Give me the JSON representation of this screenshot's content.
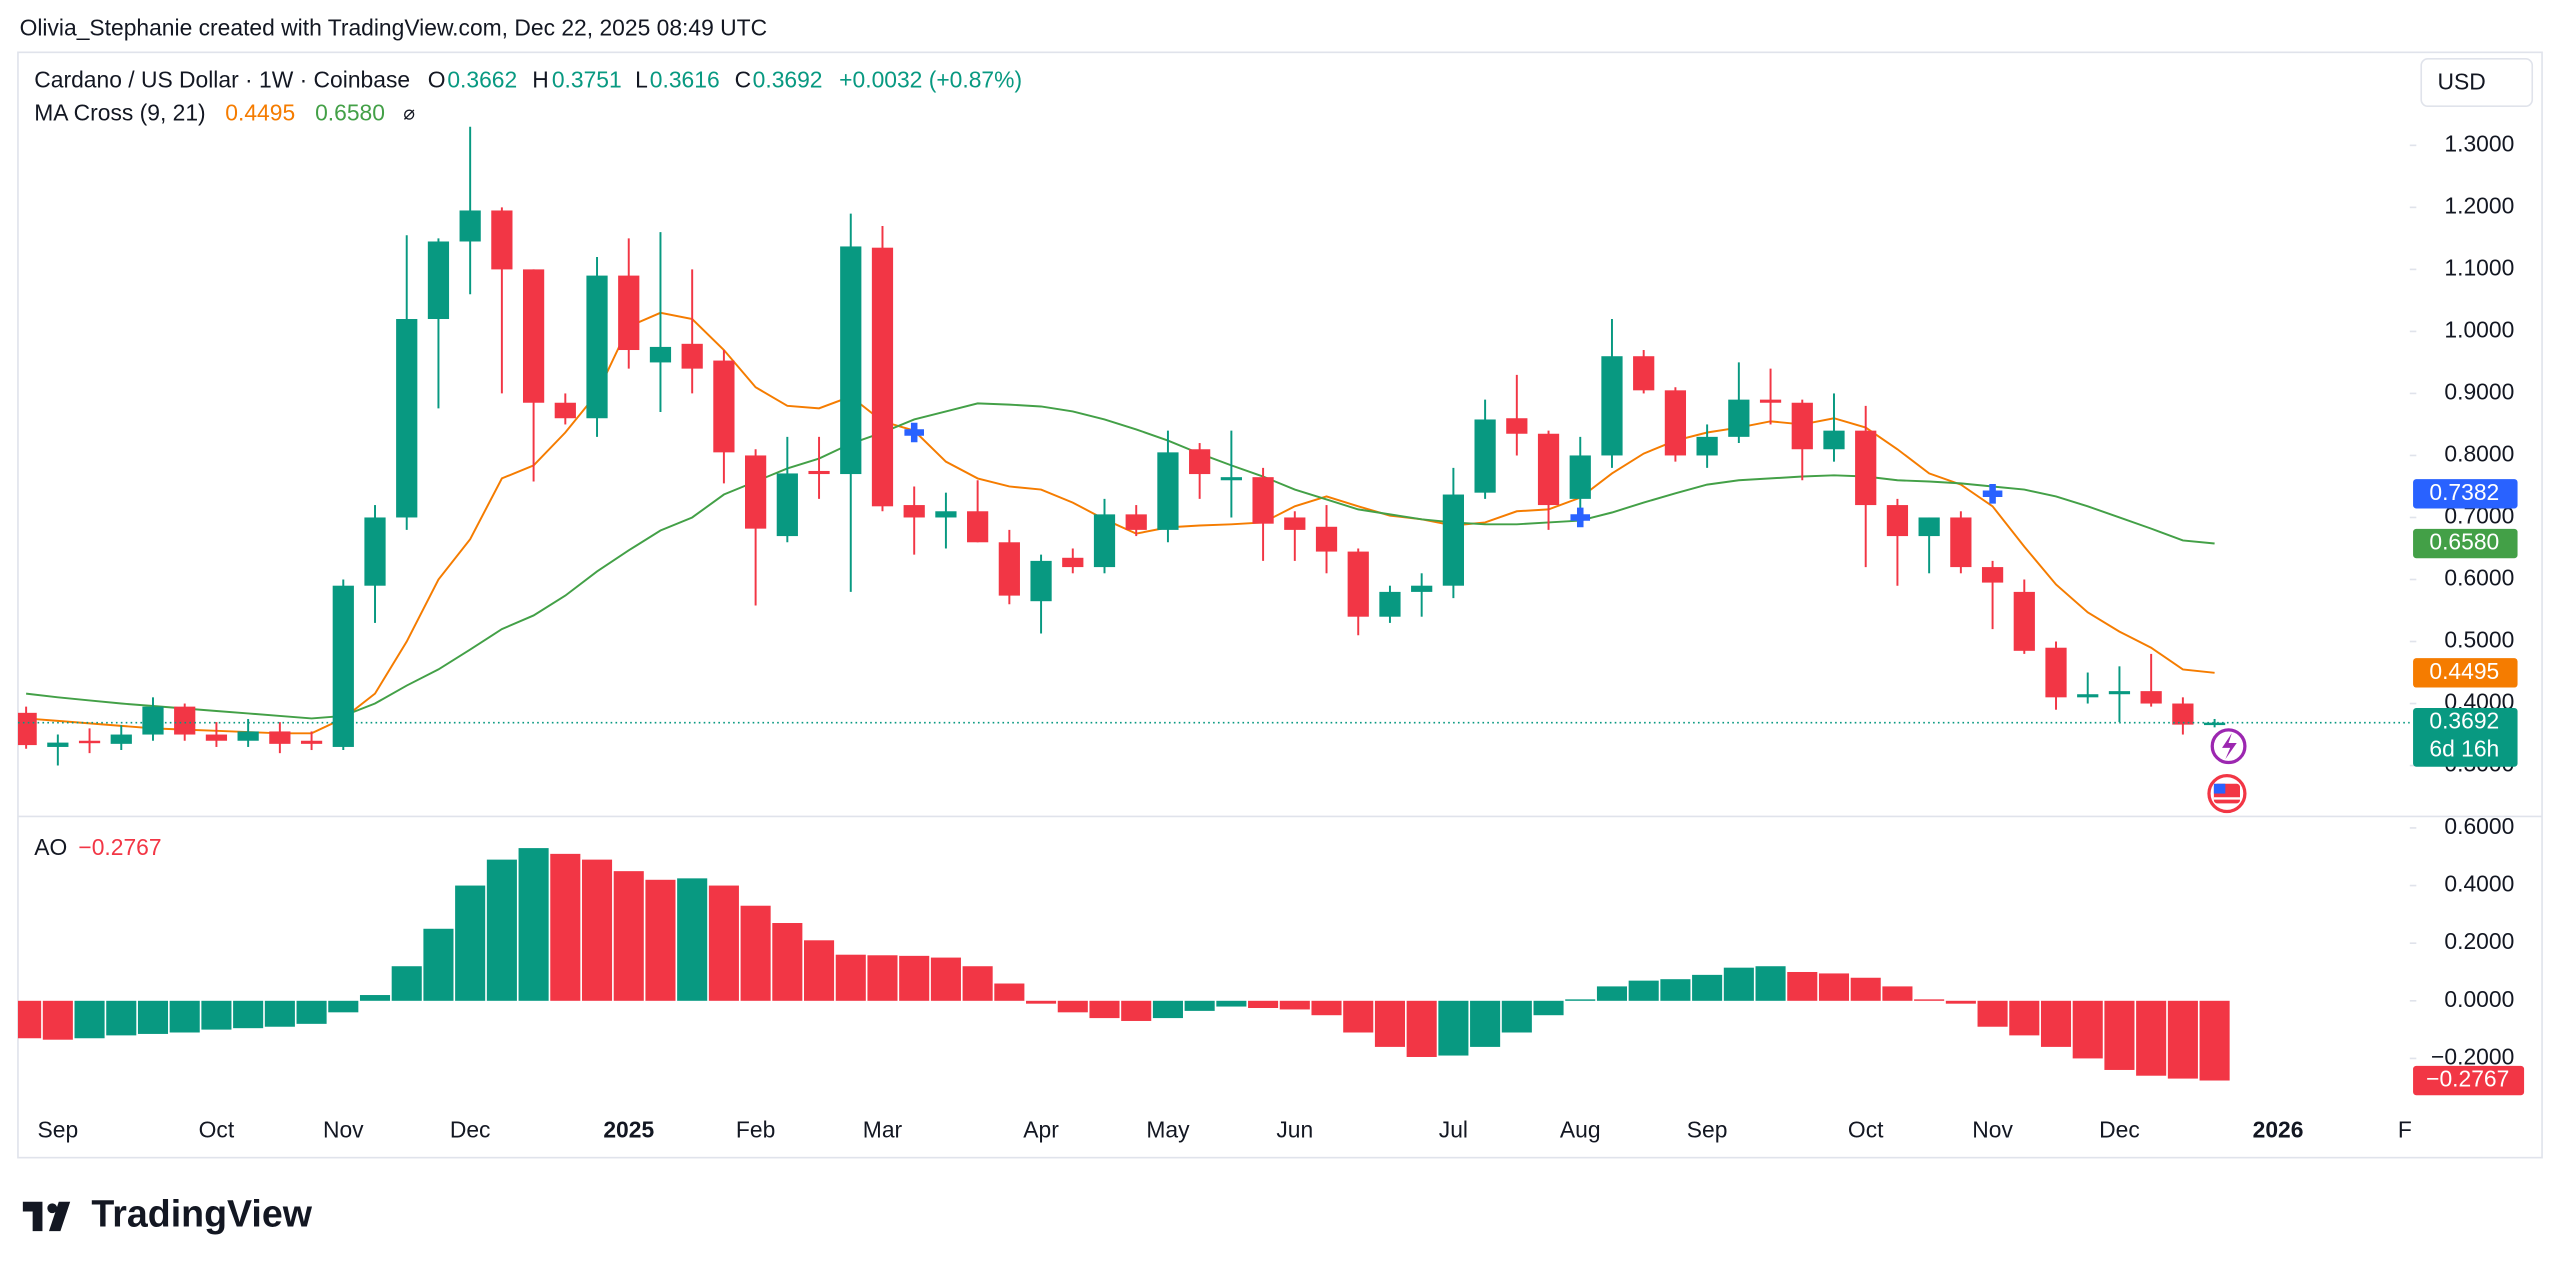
{
  "header": {
    "attribution": "Olivia_Stephanie created with TradingView.com, Dec 22, 2025 08:49 UTC",
    "logo": "TradingView"
  },
  "chart_data": [
    {
      "type": "candlestick",
      "title": "Cardano / US Dollar · 1W · Coinbase",
      "currency": "USD",
      "ohlc_keys": [
        "O",
        "H",
        "L",
        "C"
      ],
      "change": "+0.0032 (+0.87%)",
      "up_color": "#089981",
      "down_color": "#f23645",
      "categories": [
        null,
        "Sep",
        null,
        null,
        null,
        null,
        "Oct",
        null,
        null,
        null,
        "Nov",
        null,
        null,
        null,
        "Dec",
        null,
        null,
        null,
        null,
        "2025",
        null,
        null,
        null,
        "Feb",
        null,
        null,
        null,
        "Mar",
        null,
        null,
        null,
        null,
        "Apr",
        null,
        null,
        null,
        "May",
        null,
        null,
        null,
        "Jun",
        null,
        null,
        null,
        null,
        "Jul",
        null,
        null,
        null,
        "Aug",
        null,
        null,
        null,
        "Sep",
        null,
        null,
        null,
        null,
        "Oct",
        null,
        null,
        null,
        "Nov",
        null,
        null,
        null,
        "Dec",
        null,
        null,
        null,
        null,
        "2026",
        null,
        null,
        null,
        "F"
      ],
      "open": [
        0.385,
        0.33,
        0.34,
        0.335,
        0.35,
        0.395,
        0.35,
        0.34,
        0.355,
        0.34,
        0.33,
        0.59,
        0.7,
        1.02,
        1.145,
        1.195,
        1.1,
        0.885,
        0.86,
        1.09,
        0.95,
        0.98,
        0.953,
        0.8,
        0.67,
        0.775,
        0.77,
        1.135,
        0.72,
        0.7,
        0.71,
        0.66,
        0.565,
        0.635,
        0.62,
        0.705,
        0.68,
        0.81,
        0.76,
        0.765,
        0.7,
        0.685,
        0.645,
        0.54,
        0.58,
        0.59,
        0.74,
        0.86,
        0.835,
        0.73,
        0.8,
        0.96,
        0.905,
        0.8,
        0.83,
        0.89,
        0.885,
        0.81,
        0.84,
        0.72,
        0.67,
        0.7,
        0.62,
        0.58,
        0.49,
        0.41,
        0.415,
        0.42,
        0.4,
        0.3662,
        null,
        null,
        null,
        null,
        null,
        null
      ],
      "high": [
        0.395,
        0.35,
        0.36,
        0.365,
        0.41,
        0.4,
        0.37,
        0.375,
        0.37,
        0.355,
        0.6,
        0.72,
        1.155,
        1.15,
        1.33,
        1.2,
        1.1,
        0.9,
        1.12,
        1.15,
        1.16,
        1.1,
        0.97,
        0.81,
        0.83,
        0.83,
        1.19,
        1.17,
        0.75,
        0.74,
        0.76,
        0.68,
        0.64,
        0.65,
        0.73,
        0.72,
        0.84,
        0.82,
        0.84,
        0.78,
        0.71,
        0.72,
        0.65,
        0.59,
        0.61,
        0.78,
        0.89,
        0.93,
        0.84,
        0.83,
        1.02,
        0.97,
        0.91,
        0.85,
        0.95,
        0.94,
        0.89,
        0.9,
        0.88,
        0.73,
        0.7,
        0.71,
        0.63,
        0.6,
        0.5,
        0.45,
        0.46,
        0.48,
        0.41,
        0.3751,
        null,
        null,
        null,
        null,
        null,
        null
      ],
      "low": [
        0.327,
        0.3,
        0.32,
        0.325,
        0.34,
        0.34,
        0.33,
        0.33,
        0.32,
        0.325,
        0.325,
        0.53,
        0.68,
        0.876,
        1.06,
        0.9,
        0.758,
        0.85,
        0.83,
        0.94,
        0.87,
        0.9,
        0.755,
        0.558,
        0.66,
        0.73,
        0.58,
        0.71,
        0.64,
        0.65,
        0.66,
        0.56,
        0.513,
        0.61,
        0.61,
        0.67,
        0.66,
        0.73,
        0.7,
        0.63,
        0.63,
        0.61,
        0.51,
        0.53,
        0.54,
        0.57,
        0.73,
        0.8,
        0.68,
        0.69,
        0.78,
        0.9,
        0.79,
        0.78,
        0.82,
        0.85,
        0.76,
        0.79,
        0.62,
        0.59,
        0.61,
        0.61,
        0.52,
        0.48,
        0.39,
        0.4,
        0.37,
        0.395,
        0.35,
        0.3616,
        null,
        null,
        null,
        null,
        null,
        null
      ],
      "close": [
        0.333,
        0.337,
        0.337,
        0.35,
        0.395,
        0.35,
        0.34,
        0.355,
        0.335,
        0.335,
        0.59,
        0.7,
        1.02,
        1.145,
        1.195,
        1.1,
        0.885,
        0.86,
        1.09,
        0.97,
        0.975,
        0.94,
        0.805,
        0.682,
        0.771,
        0.77,
        1.137,
        0.718,
        0.7,
        0.71,
        0.66,
        0.574,
        0.63,
        0.62,
        0.705,
        0.68,
        0.805,
        0.77,
        0.765,
        0.69,
        0.68,
        0.645,
        0.54,
        0.58,
        0.59,
        0.737,
        0.858,
        0.835,
        0.72,
        0.8,
        0.96,
        0.905,
        0.8,
        0.83,
        0.89,
        0.885,
        0.81,
        0.84,
        0.72,
        0.67,
        0.7,
        0.62,
        0.595,
        0.485,
        0.41,
        0.415,
        0.42,
        0.4,
        0.366,
        0.3692,
        null,
        null,
        null,
        null,
        null,
        null
      ],
      "countdown": "6d 16h",
      "indicator": {
        "name": "MA Cross (9, 21)",
        "symbol": "⌀",
        "series": [
          {
            "color": "#f57c00",
            "values": [
              0.376,
              0.372,
              0.368,
              0.364,
              0.36,
              0.358,
              0.356,
              0.354,
              0.352,
              0.352,
              0.376,
              0.416,
              0.5,
              0.6,
              0.665,
              0.763,
              0.784,
              0.837,
              0.9,
              1.008,
              1.03,
              1.02,
              0.97,
              0.91,
              0.88,
              0.876,
              0.895,
              0.855,
              0.84,
              0.79,
              0.763,
              0.75,
              0.745,
              0.724,
              0.697,
              0.674,
              0.684,
              0.687,
              0.689,
              0.692,
              0.718,
              0.734,
              0.718,
              0.703,
              0.697,
              0.687,
              0.692,
              0.71,
              0.713,
              0.732,
              0.771,
              0.803,
              0.824,
              0.837,
              0.845,
              0.855,
              0.85,
              0.86,
              0.845,
              0.81,
              0.771,
              0.753,
              0.718,
              0.653,
              0.592,
              0.547,
              0.516,
              0.49,
              0.455,
              0.4495,
              null,
              null,
              null,
              null,
              null,
              null
            ]
          },
          {
            "color": "#43a047",
            "last_label": "0.6580",
            "values": [
              0.416,
              0.41,
              0.405,
              0.4,
              0.396,
              0.392,
              0.388,
              0.384,
              0.38,
              0.376,
              0.38,
              0.4,
              0.429,
              0.455,
              0.487,
              0.52,
              0.542,
              0.574,
              0.613,
              0.647,
              0.679,
              0.7,
              0.737,
              0.758,
              0.779,
              0.795,
              0.819,
              0.837,
              0.858,
              0.871,
              0.884,
              0.882,
              0.879,
              0.871,
              0.858,
              0.842,
              0.824,
              0.803,
              0.784,
              0.766,
              0.745,
              0.729,
              0.713,
              0.705,
              0.697,
              0.692,
              0.689,
              0.689,
              0.692,
              0.695,
              0.708,
              0.724,
              0.739,
              0.753,
              0.76,
              0.763,
              0.766,
              0.768,
              0.766,
              0.76,
              0.758,
              0.755,
              0.75,
              0.745,
              0.734,
              0.718,
              0.7,
              0.682,
              0.663,
              0.658,
              null,
              null,
              null,
              null,
              null,
              null
            ]
          }
        ],
        "cross": {
          "color": "#2962ff",
          "values": [
            null,
            null,
            null,
            null,
            null,
            null,
            null,
            null,
            null,
            null,
            null,
            null,
            null,
            null,
            null,
            null,
            null,
            null,
            null,
            null,
            null,
            null,
            null,
            null,
            null,
            null,
            null,
            null,
            0.837,
            null,
            null,
            null,
            null,
            null,
            null,
            null,
            null,
            null,
            null,
            null,
            null,
            null,
            null,
            null,
            null,
            null,
            null,
            null,
            null,
            0.7,
            null,
            null,
            null,
            null,
            null,
            null,
            null,
            null,
            null,
            null,
            null,
            null,
            0.7382,
            null,
            null,
            null,
            null,
            null,
            null,
            null,
            null,
            null,
            null,
            null,
            null,
            null
          ]
        }
      },
      "ylim": [
        0.218,
        1.45
      ],
      "yticks": [
        {
          "value": 0.3,
          "label": "0.3000"
        },
        {
          "value": 0.4,
          "label": "0.4000"
        },
        {
          "value": 0.5,
          "label": "0.5000"
        },
        {
          "value": 0.6,
          "label": "0.6000"
        },
        {
          "value": 0.7,
          "label": "0.7000"
        },
        {
          "value": 0.8,
          "label": "0.8000"
        },
        {
          "value": 0.9,
          "label": "0.9000"
        },
        {
          "value": 1.0,
          "label": "1.0000"
        },
        {
          "value": 1.1,
          "label": "1.1000"
        },
        {
          "value": 1.2,
          "label": "1.2000"
        },
        {
          "value": 1.3,
          "label": "1.3000"
        }
      ],
      "grid": false
    },
    {
      "type": "histogram",
      "title": "AO",
      "last_label": "−0.2767",
      "up_color": "#089981",
      "down_color": "#f23645",
      "values": [
        -0.13,
        -0.135,
        -0.13,
        -0.12,
        -0.115,
        -0.11,
        -0.1,
        -0.095,
        -0.09,
        -0.08,
        -0.04,
        0.02,
        0.12,
        0.25,
        0.4,
        0.49,
        0.53,
        0.51,
        0.49,
        0.45,
        0.42,
        0.425,
        0.4,
        0.33,
        0.27,
        0.21,
        0.16,
        0.158,
        0.156,
        0.15,
        0.12,
        0.06,
        -0.01,
        -0.04,
        -0.06,
        -0.07,
        -0.06,
        -0.035,
        -0.02,
        -0.025,
        -0.03,
        -0.05,
        -0.11,
        -0.16,
        -0.195,
        -0.19,
        -0.16,
        -0.11,
        -0.05,
        0.005,
        0.05,
        0.07,
        0.075,
        0.09,
        0.115,
        0.12,
        0.1,
        0.095,
        0.08,
        0.05,
        0.005,
        -0.01,
        -0.09,
        -0.12,
        -0.16,
        -0.2,
        -0.24,
        -0.26,
        -0.27,
        -0.2767,
        null,
        null,
        null,
        null,
        null,
        null
      ],
      "ylim": [
        -0.38,
        0.64
      ],
      "yticks": [
        {
          "value": -0.2,
          "label": "−0.2000"
        },
        {
          "value": 0,
          "label": "0.0000"
        },
        {
          "value": 0.2,
          "label": "0.2000"
        },
        {
          "value": 0.4,
          "label": "0.4000"
        },
        {
          "value": 0.6,
          "label": "0.6000"
        }
      ],
      "grid": false
    }
  ]
}
